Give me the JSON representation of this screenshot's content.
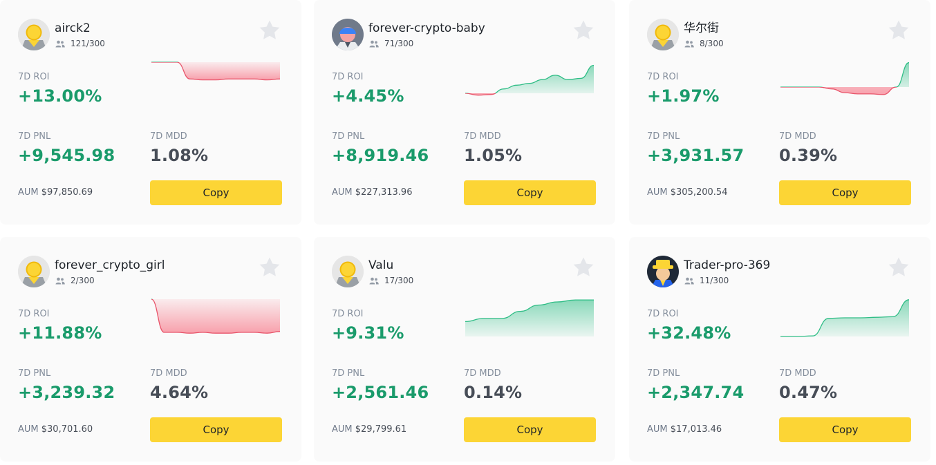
{
  "labels": {
    "roi": "7D ROI",
    "pnl": "7D PNL",
    "mdd": "7D MDD",
    "aum": "AUM",
    "copy": "Copy"
  },
  "colors": {
    "positive": "#1a9b6b",
    "negative": "#e8546a",
    "button": "#fcd535",
    "card_bg": "#fafafa"
  },
  "icons": {
    "followers": "people-icon",
    "favorite": "star-icon"
  },
  "traders": [
    {
      "name": "airck2",
      "avatar": "default-avatar",
      "followers": "121/300",
      "roi": "+13.00%",
      "pnl": "+9,545.98",
      "mdd": "1.08%",
      "aum": "$97,850.69",
      "chart_data": {
        "type": "area",
        "values": [
          0.0,
          0.0,
          0.0,
          -1.8,
          -1.9,
          -1.9,
          -1.8,
          -1.8,
          -1.8,
          -1.9,
          -1.8
        ],
        "ylim": [
          -4,
          0
        ]
      }
    },
    {
      "name": "forever-crypto-baby",
      "avatar": "blue-cap-avatar",
      "followers": "71/300",
      "roi": "+4.45%",
      "pnl": "+8,919.46",
      "mdd": "1.05%",
      "aum": "$227,313.96",
      "chart_data": {
        "type": "area",
        "values": [
          0.0,
          -0.3,
          -0.2,
          0.7,
          1.3,
          1.6,
          2.2,
          2.9,
          2.2,
          2.4,
          4.5
        ],
        "ylim": [
          -1,
          5
        ]
      }
    },
    {
      "name": "华尔街",
      "avatar": "default-avatar",
      "followers": "8/300",
      "roi": "+1.97%",
      "pnl": "+3,931.57",
      "mdd": "0.39%",
      "aum": "$305,200.54",
      "chart_data": {
        "type": "area",
        "values": [
          0.0,
          0.0,
          0.0,
          0.0,
          -0.15,
          -0.45,
          -0.55,
          -0.55,
          -0.6,
          0.0,
          1.97
        ],
        "ylim": [
          -1,
          2
        ]
      }
    },
    {
      "name": "forever_crypto_girl",
      "avatar": "default-avatar",
      "followers": "2/300",
      "roi": "+11.88%",
      "pnl": "+3,239.32",
      "mdd": "4.64%",
      "aum": "$30,701.60",
      "chart_data": {
        "type": "area",
        "values": [
          0.0,
          -4.0,
          -4.0,
          -4.1,
          -4.0,
          -4.1,
          -4.1,
          -4.0,
          -4.0,
          -4.1,
          -3.9
        ],
        "ylim": [
          -4.5,
          0
        ]
      }
    },
    {
      "name": "Valu",
      "avatar": "default-avatar",
      "followers": "17/300",
      "roi": "+9.31%",
      "pnl": "+2,561.46",
      "mdd": "0.14%",
      "aum": "$29,799.61",
      "chart_data": {
        "type": "area",
        "values": [
          3.8,
          4.6,
          4.6,
          6.4,
          8.0,
          8.8,
          9.3,
          9.3
        ],
        "ylim": [
          0,
          9.5
        ]
      }
    },
    {
      "name": "Trader-pro-369",
      "avatar": "hat-avatar",
      "followers": "11/300",
      "roi": "+32.48%",
      "pnl": "+2,347.74",
      "mdd": "0.47%",
      "aum": "$17,013.46",
      "chart_data": {
        "type": "area",
        "values": [
          0.0,
          0.0,
          0.5,
          16.0,
          16.5,
          16.5,
          17.0,
          17.5,
          32.5
        ],
        "ylim": [
          0,
          33
        ]
      }
    }
  ]
}
